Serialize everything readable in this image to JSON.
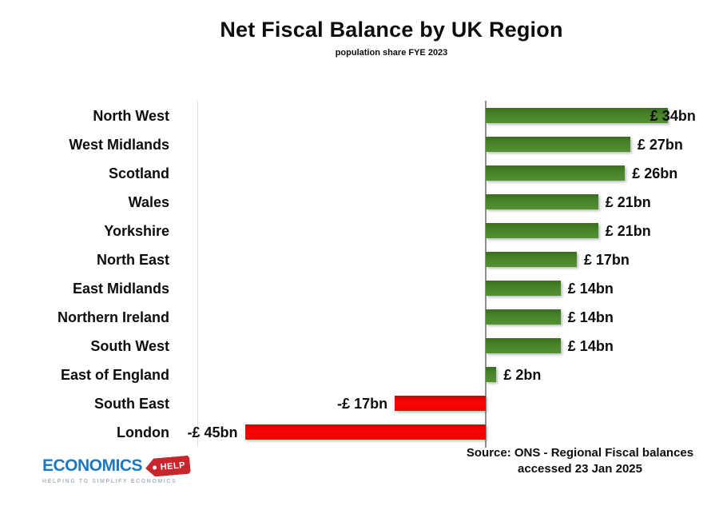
{
  "header": {
    "title": "Net Fiscal Balance by UK Region",
    "subtitle": "population share FYE 2023"
  },
  "chart_data": {
    "type": "bar",
    "orientation": "horizontal",
    "title": "Net Fiscal Balance by UK Region",
    "subtitle": "population share FYE 2023",
    "unit": "£bn",
    "categories": [
      "North West",
      "West Midlands",
      "Scotland",
      "Wales",
      "Yorkshire",
      "North East",
      "East Midlands",
      "Northern Ireland",
      "South West",
      "East of England",
      "South East",
      "London"
    ],
    "values": [
      34,
      27,
      26,
      21,
      21,
      17,
      14,
      14,
      14,
      2,
      -17,
      -45
    ],
    "value_labels": [
      "£ 34bn",
      "£ 27bn",
      "£ 26bn",
      "£ 21bn",
      "£ 21bn",
      "£ 17bn",
      "£ 14bn",
      "£ 14bn",
      "£ 14bn",
      "£ 2bn",
      "-£ 17bn",
      "-£ 45bn"
    ],
    "xlim": [
      -54,
      44
    ],
    "grid": false,
    "legend": false,
    "zero_axis_line": true,
    "positive_color": "#47842a",
    "negative_color": "#fc0404",
    "axis_color": "#8f8f8f",
    "plot_border_color": "#dcdcdc"
  },
  "source": {
    "line1": "Source: ONS - Regional Fiscal balances",
    "line2": "accessed 23 Jan 2025"
  },
  "logo": {
    "brand": "ECONOMICS",
    "tag": "HELP",
    "tagline": "HELPING TO SIMPLIFY ECONOMICS",
    "brand_color": "#1b78c2",
    "tag_color": "#c9252c"
  }
}
